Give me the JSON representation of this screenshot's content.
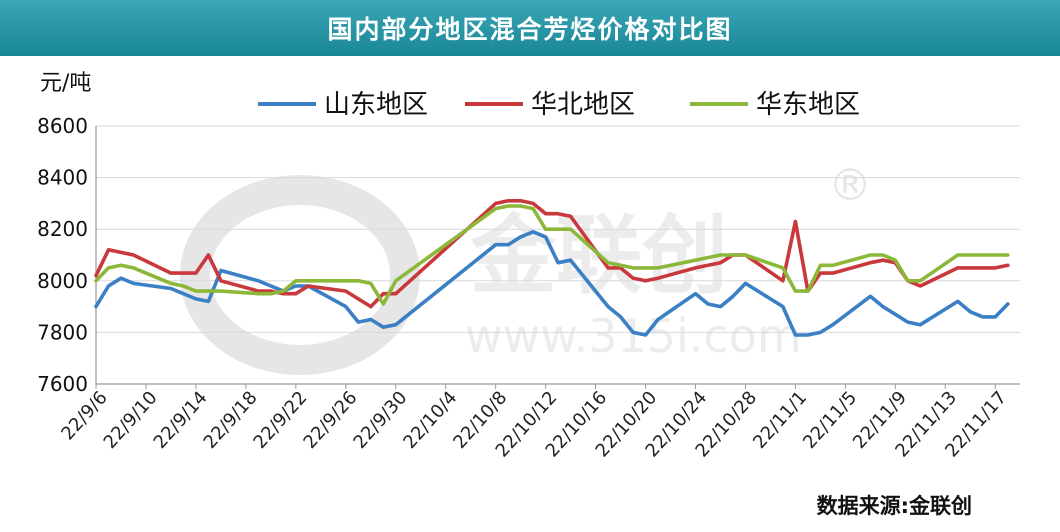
{
  "header": {
    "title": "国内部分地区混合芳烃价格对比图"
  },
  "source_note": "数据来源:金联创",
  "watermark": {
    "brand": "金联创",
    "url": "www.315i.com",
    "registered_mark": "®"
  },
  "colors": {
    "header_bg": "#1e8b9b",
    "山东": "#3b7fc4",
    "华北": "#c9393c",
    "华东": "#8cb83a",
    "grid": "#d9d9d9"
  },
  "chart_data": {
    "type": "line",
    "title": "国内部分地区混合芳烃价格对比图",
    "ylabel": "元/吨",
    "xlabel": "",
    "ylim": [
      7600,
      8600
    ],
    "yticks": [
      7600,
      7800,
      8000,
      8200,
      8400,
      8600
    ],
    "grid": "horizontal",
    "legend_position": "top",
    "x_tick_labels": [
      "22/9/6",
      "22/9/10",
      "22/9/14",
      "22/9/18",
      "22/9/22",
      "22/9/26",
      "22/9/30",
      "22/10/4",
      "22/10/8",
      "22/10/12",
      "22/10/16",
      "22/10/20",
      "22/10/24",
      "22/10/28",
      "22/11/1",
      "22/11/5",
      "22/11/9",
      "22/11/13",
      "22/11/17"
    ],
    "x_start": "2022-09-06",
    "x": [
      "2022-09-06",
      "2022-09-07",
      "2022-09-08",
      "2022-09-09",
      "2022-09-12",
      "2022-09-13",
      "2022-09-14",
      "2022-09-15",
      "2022-09-16",
      "2022-09-19",
      "2022-09-20",
      "2022-09-21",
      "2022-09-22",
      "2022-09-23",
      "2022-09-26",
      "2022-09-27",
      "2022-09-28",
      "2022-09-29",
      "2022-09-30",
      "2022-10-08",
      "2022-10-09",
      "2022-10-10",
      "2022-10-11",
      "2022-10-12",
      "2022-10-13",
      "2022-10-14",
      "2022-10-17",
      "2022-10-18",
      "2022-10-19",
      "2022-10-20",
      "2022-10-21",
      "2022-10-24",
      "2022-10-25",
      "2022-10-26",
      "2022-10-27",
      "2022-10-28",
      "2022-10-31",
      "2022-11-01",
      "2022-11-02",
      "2022-11-03",
      "2022-11-04",
      "2022-11-07",
      "2022-11-08",
      "2022-11-09",
      "2022-11-10",
      "2022-11-11",
      "2022-11-14",
      "2022-11-15",
      "2022-11-16",
      "2022-11-17",
      "2022-11-18"
    ],
    "series": [
      {
        "name": "山东地区",
        "color": "#3b7fc4",
        "values": [
          7900,
          7980,
          8010,
          7990,
          7970,
          7950,
          7930,
          7920,
          8040,
          8000,
          7980,
          7960,
          7980,
          7980,
          7900,
          7840,
          7850,
          7820,
          7830,
          8140,
          8140,
          8170,
          8190,
          8170,
          8070,
          8080,
          7900,
          7860,
          7800,
          7790,
          7850,
          7950,
          7910,
          7900,
          7940,
          7990,
          7900,
          7790,
          7790,
          7800,
          7830,
          7940,
          7900,
          7870,
          7840,
          7830,
          7920,
          7880,
          7860,
          7860,
          7910
        ]
      },
      {
        "name": "华北地区",
        "color": "#c9393c",
        "values": [
          8020,
          8120,
          8110,
          8100,
          8030,
          8030,
          8030,
          8100,
          8000,
          7960,
          7960,
          7950,
          7950,
          7980,
          7960,
          7930,
          7900,
          7950,
          7950,
          8300,
          8310,
          8310,
          8300,
          8260,
          8260,
          8250,
          8050,
          8050,
          8010,
          8000,
          8010,
          8050,
          8060,
          8070,
          8100,
          8100,
          8000,
          8230,
          7960,
          8030,
          8030,
          8070,
          8080,
          8070,
          8000,
          7980,
          8050,
          8050,
          8050,
          8050,
          8060
        ]
      },
      {
        "name": "华东地区",
        "color": "#8cb83a",
        "values": [
          8000,
          8050,
          8060,
          8050,
          7990,
          7980,
          7960,
          7960,
          7960,
          7950,
          7950,
          7960,
          8000,
          8000,
          8000,
          8000,
          7990,
          7910,
          8000,
          8280,
          8290,
          8290,
          8280,
          8200,
          8200,
          8200,
          8070,
          8060,
          8050,
          8050,
          8050,
          8080,
          8090,
          8100,
          8100,
          8100,
          8050,
          7960,
          7960,
          8060,
          8060,
          8100,
          8100,
          8080,
          8000,
          8000,
          8100,
          8100,
          8100,
          8100,
          8100
        ]
      }
    ]
  }
}
